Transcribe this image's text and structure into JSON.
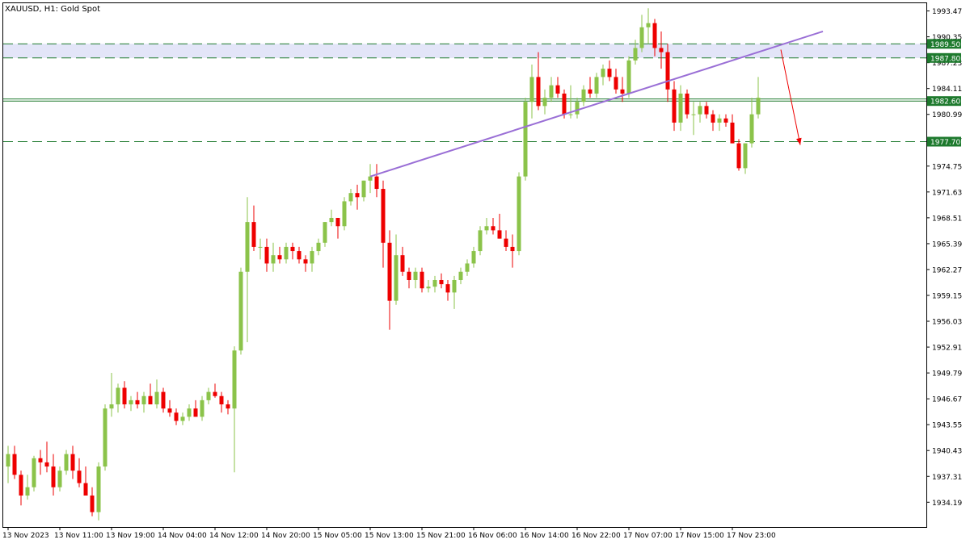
{
  "title": "XAUUSD, H1:  Gold Spot",
  "colors": {
    "background": "#ffffff",
    "frame": "#000000",
    "bull": "#8bc34a",
    "bear": "#ee0000",
    "level_line": "#1e7a2e",
    "zone_fill": "#e3e5f8",
    "trendline": "#9a6fd6",
    "arrow": "#ee0000",
    "axis_text": "#000000"
  },
  "chart_data": {
    "type": "candlestick",
    "symbol": "XAUUSD",
    "timeframe": "H1",
    "instrument_name": "Gold Spot",
    "ylim": [
      1931.2,
      1994.5
    ],
    "price_ticks": [
      "1993.47",
      "1990.35",
      "1987.23",
      "1984.11",
      "1980.99",
      "1977.87",
      "1974.75",
      "1971.63",
      "1968.51",
      "1965.39",
      "1962.27",
      "1959.15",
      "1956.03",
      "1952.91",
      "1949.79",
      "1946.67",
      "1943.55",
      "1940.43",
      "1937.31",
      "1934.19"
    ],
    "time_labels": [
      "13 Nov 2023",
      "13 Nov 11:00",
      "13 Nov 19:00",
      "14 Nov 04:00",
      "14 Nov 12:00",
      "14 Nov 20:00",
      "15 Nov 05:00",
      "15 Nov 13:00",
      "15 Nov 21:00",
      "16 Nov 06:00",
      "16 Nov 14:00",
      "16 Nov 22:00",
      "17 Nov 07:00",
      "17 Nov 15:00",
      "17 Nov 23:00"
    ],
    "time_label_bars": [
      0,
      8,
      16,
      24,
      32,
      40,
      48,
      56,
      64,
      72,
      80,
      88,
      96,
      104,
      112
    ],
    "levels": [
      {
        "price": 1989.5,
        "label": "1989.50",
        "style": "dashed"
      },
      {
        "price": 1987.8,
        "label": "1987.80",
        "style": "dashed"
      },
      {
        "price": 1982.6,
        "label": "1982.60",
        "style": "solid"
      },
      {
        "price": 1977.7,
        "label": "1977.70",
        "style": "dashed"
      }
    ],
    "zone": {
      "from": 1987.8,
      "to": 1989.5
    },
    "extra_line": 1982.85,
    "trendline": {
      "start_bar": 56,
      "start_price": 1973.5,
      "end_bar": 126,
      "end_price": 1991.0
    },
    "arrow": {
      "start_bar": 119.5,
      "start_price": 1988.8,
      "end_bar": 122.5,
      "end_price": 1977.3
    },
    "candles": [
      {
        "o": 1938.5,
        "h": 1941.0,
        "l": 1936.5,
        "c": 1940.0
      },
      {
        "o": 1940.0,
        "h": 1941.0,
        "l": 1937.0,
        "c": 1937.5
      },
      {
        "o": 1937.5,
        "h": 1938.0,
        "l": 1933.8,
        "c": 1935.0
      },
      {
        "o": 1935.0,
        "h": 1937.5,
        "l": 1934.5,
        "c": 1936.0
      },
      {
        "o": 1936.0,
        "h": 1939.8,
        "l": 1935.5,
        "c": 1939.5
      },
      {
        "o": 1939.5,
        "h": 1940.5,
        "l": 1937.5,
        "c": 1939.0
      },
      {
        "o": 1939.0,
        "h": 1941.5,
        "l": 1937.8,
        "c": 1938.5
      },
      {
        "o": 1938.5,
        "h": 1940.0,
        "l": 1935.0,
        "c": 1936.0
      },
      {
        "o": 1936.0,
        "h": 1938.5,
        "l": 1935.5,
        "c": 1938.0
      },
      {
        "o": 1938.0,
        "h": 1940.5,
        "l": 1937.5,
        "c": 1940.0
      },
      {
        "o": 1940.0,
        "h": 1941.0,
        "l": 1937.0,
        "c": 1938.0
      },
      {
        "o": 1938.0,
        "h": 1939.5,
        "l": 1936.0,
        "c": 1936.5
      },
      {
        "o": 1936.5,
        "h": 1938.5,
        "l": 1935.0,
        "c": 1935.0
      },
      {
        "o": 1935.0,
        "h": 1936.0,
        "l": 1932.5,
        "c": 1933.0
      },
      {
        "o": 1933.0,
        "h": 1939.0,
        "l": 1932.0,
        "c": 1938.5
      },
      {
        "o": 1938.5,
        "h": 1946.0,
        "l": 1938.0,
        "c": 1945.5
      },
      {
        "o": 1945.5,
        "h": 1949.8,
        "l": 1944.5,
        "c": 1946.0
      },
      {
        "o": 1946.0,
        "h": 1948.5,
        "l": 1945.0,
        "c": 1948.0
      },
      {
        "o": 1948.0,
        "h": 1948.8,
        "l": 1945.5,
        "c": 1946.0
      },
      {
        "o": 1946.0,
        "h": 1947.0,
        "l": 1945.2,
        "c": 1946.5
      },
      {
        "o": 1946.5,
        "h": 1947.5,
        "l": 1945.5,
        "c": 1946.0
      },
      {
        "o": 1946.0,
        "h": 1947.5,
        "l": 1945.0,
        "c": 1947.0
      },
      {
        "o": 1947.0,
        "h": 1948.5,
        "l": 1946.0,
        "c": 1946.0
      },
      {
        "o": 1946.0,
        "h": 1949.0,
        "l": 1945.5,
        "c": 1947.5
      },
      {
        "o": 1947.5,
        "h": 1948.0,
        "l": 1945.0,
        "c": 1945.5
      },
      {
        "o": 1945.5,
        "h": 1946.5,
        "l": 1944.5,
        "c": 1945.0
      },
      {
        "o": 1945.0,
        "h": 1945.5,
        "l": 1943.5,
        "c": 1944.0
      },
      {
        "o": 1944.0,
        "h": 1945.0,
        "l": 1943.5,
        "c": 1944.5
      },
      {
        "o": 1944.5,
        "h": 1946.0,
        "l": 1944.0,
        "c": 1945.5
      },
      {
        "o": 1945.5,
        "h": 1946.5,
        "l": 1944.5,
        "c": 1944.5
      },
      {
        "o": 1944.5,
        "h": 1947.0,
        "l": 1944.0,
        "c": 1946.5
      },
      {
        "o": 1946.5,
        "h": 1948.0,
        "l": 1946.0,
        "c": 1947.5
      },
      {
        "o": 1947.5,
        "h": 1948.5,
        "l": 1946.8,
        "c": 1947.0
      },
      {
        "o": 1947.0,
        "h": 1947.5,
        "l": 1945.0,
        "c": 1946.0
      },
      {
        "o": 1946.0,
        "h": 1946.5,
        "l": 1944.8,
        "c": 1945.5
      },
      {
        "o": 1945.5,
        "h": 1953.0,
        "l": 1937.8,
        "c": 1952.5
      },
      {
        "o": 1952.5,
        "h": 1962.5,
        "l": 1952.0,
        "c": 1962.0
      },
      {
        "o": 1962.0,
        "h": 1971.0,
        "l": 1953.5,
        "c": 1968.0
      },
      {
        "o": 1968.0,
        "h": 1970.0,
        "l": 1964.5,
        "c": 1965.0
      },
      {
        "o": 1965.0,
        "h": 1966.0,
        "l": 1963.5,
        "c": 1965.0
      },
      {
        "o": 1965.0,
        "h": 1966.0,
        "l": 1962.0,
        "c": 1963.0
      },
      {
        "o": 1963.0,
        "h": 1965.5,
        "l": 1962.0,
        "c": 1964.0
      },
      {
        "o": 1964.0,
        "h": 1965.0,
        "l": 1963.0,
        "c": 1963.5
      },
      {
        "o": 1963.5,
        "h": 1965.5,
        "l": 1963.0,
        "c": 1965.0
      },
      {
        "o": 1965.0,
        "h": 1965.5,
        "l": 1963.5,
        "c": 1964.5
      },
      {
        "o": 1964.5,
        "h": 1965.0,
        "l": 1963.0,
        "c": 1963.5
      },
      {
        "o": 1963.5,
        "h": 1964.0,
        "l": 1962.0,
        "c": 1963.0
      },
      {
        "o": 1963.0,
        "h": 1965.0,
        "l": 1962.0,
        "c": 1964.5
      },
      {
        "o": 1964.5,
        "h": 1966.0,
        "l": 1964.0,
        "c": 1965.5
      },
      {
        "o": 1965.5,
        "h": 1968.0,
        "l": 1965.0,
        "c": 1968.0
      },
      {
        "o": 1968.0,
        "h": 1969.5,
        "l": 1967.5,
        "c": 1968.5
      },
      {
        "o": 1968.5,
        "h": 1968.5,
        "l": 1966.0,
        "c": 1967.5
      },
      {
        "o": 1967.5,
        "h": 1971.0,
        "l": 1967.0,
        "c": 1970.5
      },
      {
        "o": 1970.5,
        "h": 1972.0,
        "l": 1970.0,
        "c": 1971.5
      },
      {
        "o": 1971.5,
        "h": 1972.5,
        "l": 1969.5,
        "c": 1971.0
      },
      {
        "o": 1971.0,
        "h": 1973.0,
        "l": 1970.5,
        "c": 1973.0
      },
      {
        "o": 1973.0,
        "h": 1975.0,
        "l": 1971.5,
        "c": 1973.5
      },
      {
        "o": 1973.5,
        "h": 1975.0,
        "l": 1971.0,
        "c": 1972.0
      },
      {
        "o": 1972.0,
        "h": 1973.0,
        "l": 1962.5,
        "c": 1965.5
      },
      {
        "o": 1965.5,
        "h": 1967.0,
        "l": 1955.0,
        "c": 1958.5
      },
      {
        "o": 1958.5,
        "h": 1966.5,
        "l": 1958.0,
        "c": 1964.0
      },
      {
        "o": 1964.0,
        "h": 1965.0,
        "l": 1961.5,
        "c": 1962.0
      },
      {
        "o": 1962.0,
        "h": 1962.5,
        "l": 1960.0,
        "c": 1961.0
      },
      {
        "o": 1961.0,
        "h": 1962.5,
        "l": 1960.0,
        "c": 1962.0
      },
      {
        "o": 1962.0,
        "h": 1962.5,
        "l": 1959.5,
        "c": 1960.0
      },
      {
        "o": 1960.0,
        "h": 1961.0,
        "l": 1959.5,
        "c": 1960.2
      },
      {
        "o": 1960.2,
        "h": 1961.5,
        "l": 1959.5,
        "c": 1961.0
      },
      {
        "o": 1961.0,
        "h": 1961.8,
        "l": 1960.0,
        "c": 1960.5
      },
      {
        "o": 1960.5,
        "h": 1961.0,
        "l": 1958.5,
        "c": 1959.5
      },
      {
        "o": 1959.5,
        "h": 1961.5,
        "l": 1957.5,
        "c": 1961.0
      },
      {
        "o": 1961.0,
        "h": 1962.5,
        "l": 1960.5,
        "c": 1962.0
      },
      {
        "o": 1962.0,
        "h": 1963.5,
        "l": 1961.5,
        "c": 1963.0
      },
      {
        "o": 1963.0,
        "h": 1965.0,
        "l": 1962.5,
        "c": 1964.5
      },
      {
        "o": 1964.5,
        "h": 1967.5,
        "l": 1964.0,
        "c": 1967.0
      },
      {
        "o": 1967.0,
        "h": 1968.5,
        "l": 1966.5,
        "c": 1967.5
      },
      {
        "o": 1967.5,
        "h": 1968.5,
        "l": 1966.5,
        "c": 1967.0
      },
      {
        "o": 1967.0,
        "h": 1969.0,
        "l": 1966.0,
        "c": 1966.0
      },
      {
        "o": 1966.0,
        "h": 1967.0,
        "l": 1964.5,
        "c": 1965.0
      },
      {
        "o": 1965.0,
        "h": 1966.5,
        "l": 1962.5,
        "c": 1964.5
      },
      {
        "o": 1964.5,
        "h": 1974.0,
        "l": 1964.0,
        "c": 1973.5
      },
      {
        "o": 1973.5,
        "h": 1983.0,
        "l": 1973.0,
        "c": 1982.5
      },
      {
        "o": 1982.5,
        "h": 1987.0,
        "l": 1980.5,
        "c": 1985.5
      },
      {
        "o": 1985.5,
        "h": 1988.5,
        "l": 1981.5,
        "c": 1982.0
      },
      {
        "o": 1982.0,
        "h": 1984.0,
        "l": 1981.0,
        "c": 1983.0
      },
      {
        "o": 1983.0,
        "h": 1985.5,
        "l": 1982.5,
        "c": 1984.5
      },
      {
        "o": 1984.5,
        "h": 1985.5,
        "l": 1983.0,
        "c": 1983.5
      },
      {
        "o": 1983.5,
        "h": 1984.0,
        "l": 1980.5,
        "c": 1981.0
      },
      {
        "o": 1981.0,
        "h": 1984.5,
        "l": 1980.5,
        "c": 1981.0
      },
      {
        "o": 1981.0,
        "h": 1983.0,
        "l": 1980.5,
        "c": 1982.5
      },
      {
        "o": 1982.5,
        "h": 1984.5,
        "l": 1982.0,
        "c": 1984.0
      },
      {
        "o": 1984.0,
        "h": 1985.5,
        "l": 1983.0,
        "c": 1983.5
      },
      {
        "o": 1983.5,
        "h": 1986.0,
        "l": 1983.0,
        "c": 1985.5
      },
      {
        "o": 1985.5,
        "h": 1987.0,
        "l": 1984.5,
        "c": 1986.5
      },
      {
        "o": 1986.5,
        "h": 1987.5,
        "l": 1985.0,
        "c": 1985.5
      },
      {
        "o": 1985.5,
        "h": 1986.5,
        "l": 1983.5,
        "c": 1984.0
      },
      {
        "o": 1984.0,
        "h": 1985.5,
        "l": 1982.5,
        "c": 1983.5
      },
      {
        "o": 1983.5,
        "h": 1988.0,
        "l": 1983.0,
        "c": 1987.5
      },
      {
        "o": 1987.5,
        "h": 1990.0,
        "l": 1987.0,
        "c": 1989.0
      },
      {
        "o": 1989.0,
        "h": 1993.0,
        "l": 1988.5,
        "c": 1991.5
      },
      {
        "o": 1991.5,
        "h": 1993.8,
        "l": 1989.5,
        "c": 1992.0
      },
      {
        "o": 1992.0,
        "h": 1992.5,
        "l": 1988.0,
        "c": 1989.0
      },
      {
        "o": 1989.0,
        "h": 1991.0,
        "l": 1986.5,
        "c": 1988.5
      },
      {
        "o": 1988.5,
        "h": 1989.5,
        "l": 1982.5,
        "c": 1984.0
      },
      {
        "o": 1984.0,
        "h": 1985.0,
        "l": 1979.0,
        "c": 1980.0
      },
      {
        "o": 1980.0,
        "h": 1984.5,
        "l": 1979.0,
        "c": 1983.5
      },
      {
        "o": 1983.5,
        "h": 1984.0,
        "l": 1980.5,
        "c": 1981.0
      },
      {
        "o": 1981.0,
        "h": 1982.5,
        "l": 1978.5,
        "c": 1981.0
      },
      {
        "o": 1981.0,
        "h": 1982.5,
        "l": 1980.0,
        "c": 1982.0
      },
      {
        "o": 1982.0,
        "h": 1982.5,
        "l": 1980.5,
        "c": 1981.0
      },
      {
        "o": 1981.0,
        "h": 1981.5,
        "l": 1979.0,
        "c": 1980.0
      },
      {
        "o": 1980.0,
        "h": 1981.0,
        "l": 1979.0,
        "c": 1980.5
      },
      {
        "o": 1980.5,
        "h": 1981.0,
        "l": 1979.5,
        "c": 1980.0
      },
      {
        "o": 1980.0,
        "h": 1981.0,
        "l": 1977.5,
        "c": 1977.5
      },
      {
        "o": 1977.5,
        "h": 1978.0,
        "l": 1974.2,
        "c": 1974.5
      },
      {
        "o": 1974.5,
        "h": 1977.5,
        "l": 1973.8,
        "c": 1977.5
      },
      {
        "o": 1977.5,
        "h": 1983.0,
        "l": 1977.0,
        "c": 1981.0
      },
      {
        "o": 1981.0,
        "h": 1985.5,
        "l": 1980.5,
        "c": 1983.0
      }
    ]
  }
}
